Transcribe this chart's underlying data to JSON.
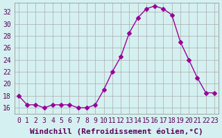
{
  "x": [
    0,
    1,
    2,
    3,
    4,
    5,
    6,
    7,
    8,
    9,
    10,
    11,
    12,
    13,
    14,
    15,
    16,
    17,
    18,
    19,
    20,
    21,
    22,
    23
  ],
  "y": [
    18,
    16.5,
    16.5,
    16,
    16.5,
    16.5,
    16.5,
    16,
    16,
    16.5,
    19,
    22,
    24.5,
    28.5,
    31,
    32.5,
    33,
    32.5,
    31.5,
    27,
    24,
    21,
    18.5,
    18.5
  ],
  "line_color": "#990099",
  "marker": "D",
  "marker_size": 3,
  "bg_color": "#d5f0f0",
  "grid_color": "#aaaaaa",
  "xlabel": "Windchill (Refroidissement éolien,°C)",
  "ylim": [
    15,
    33.5
  ],
  "xlim": [
    -0.5,
    23.5
  ],
  "yticks": [
    16,
    18,
    20,
    22,
    24,
    26,
    28,
    30,
    32
  ],
  "xticks": [
    0,
    1,
    2,
    3,
    4,
    5,
    6,
    7,
    8,
    9,
    10,
    11,
    12,
    13,
    14,
    15,
    16,
    17,
    18,
    19,
    20,
    21,
    22,
    23
  ],
  "label_color": "#5c005c",
  "xlabel_fontsize": 8,
  "tick_fontsize": 7
}
